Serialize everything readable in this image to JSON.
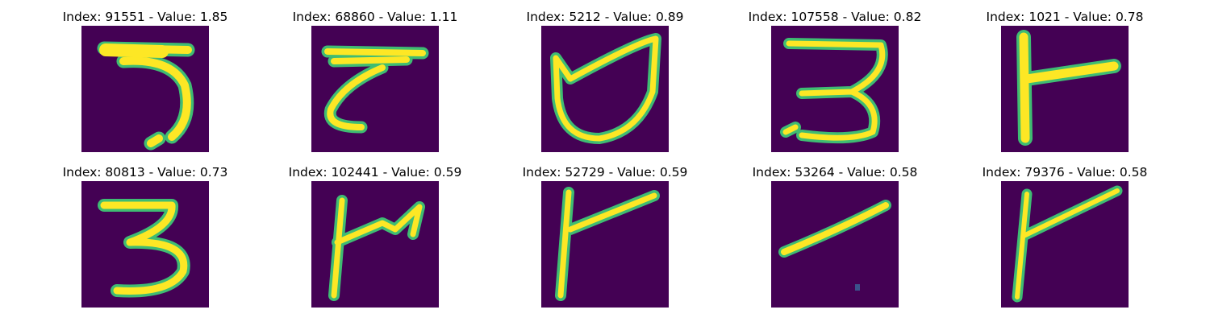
{
  "grid": {
    "panels": [
      {
        "title": "Index: 91551 - Value: 1.85",
        "index": 91551,
        "value": 1.85
      },
      {
        "title": "Index: 68860 - Value: 1.11",
        "index": 68860,
        "value": 1.11
      },
      {
        "title": "Index: 5212 - Value: 0.89",
        "index": 5212,
        "value": 0.89
      },
      {
        "title": "Index: 107558 - Value: 0.82",
        "index": 107558,
        "value": 0.82
      },
      {
        "title": "Index: 1021 - Value: 0.78",
        "index": 1021,
        "value": 0.78
      },
      {
        "title": "Index: 80813 - Value: 0.73",
        "index": 80813,
        "value": 0.73
      },
      {
        "title": "Index: 102441 - Value: 0.59",
        "index": 102441,
        "value": 0.59
      },
      {
        "title": "Index: 52729 - Value: 0.59",
        "index": 52729,
        "value": 0.59
      },
      {
        "title": "Index: 53264 - Value: 0.58",
        "index": 53264,
        "value": 0.58
      },
      {
        "title": "Index: 79376 - Value: 0.58",
        "index": 79376,
        "value": 0.58
      }
    ]
  },
  "colors": {
    "background": "#440154",
    "stroke_core": "#fde725",
    "stroke_edge": "#3fbc73"
  }
}
